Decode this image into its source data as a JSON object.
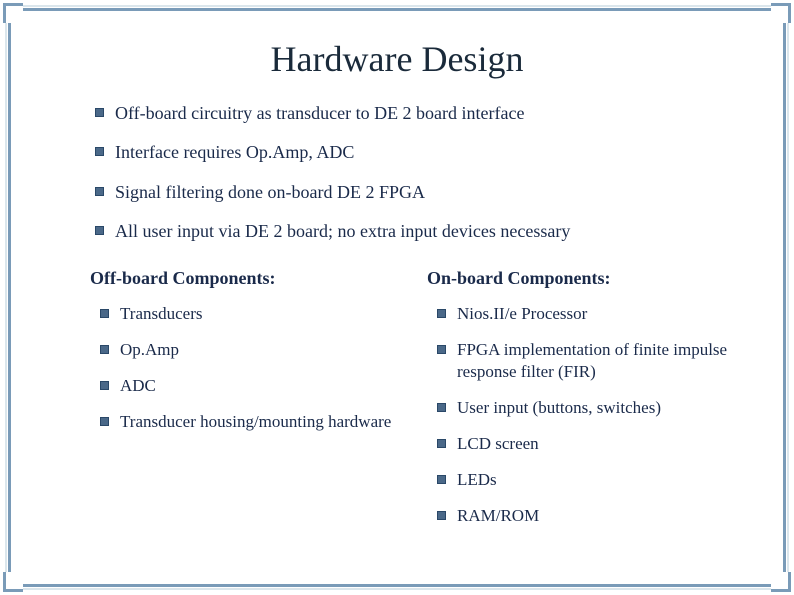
{
  "title": "Hardware Design",
  "main_points": [
    "Off-board circuitry as transducer to DE 2 board interface",
    "Interface requires Op.Amp, ADC",
    "Signal filtering done on-board DE 2 FPGA",
    "All user input via DE 2 board; no extra input devices necessary"
  ],
  "left_column": {
    "heading": "Off-board Components:",
    "items": [
      "Transducers",
      "Op.Amp",
      "ADC",
      "Transducer housing/mounting hardware"
    ]
  },
  "right_column": {
    "heading": "On-board Components:",
    "items": [
      "Nios.II/e Processor",
      "FPGA implementation of finite impulse response filter (FIR)",
      "User input (buttons, switches)",
      "LCD screen",
      "LEDs",
      "RAM/ROM"
    ]
  },
  "colors": {
    "text": "#1a2a4a",
    "title": "#1a2a3a",
    "bullet": "#4a6888",
    "bullet_border": "#2a4868",
    "frame": "#7a9bb8",
    "background": "#ffffff"
  },
  "typography": {
    "title_fontsize": 36,
    "body_fontsize": 18,
    "font_family": "Georgia, Times New Roman, serif"
  }
}
